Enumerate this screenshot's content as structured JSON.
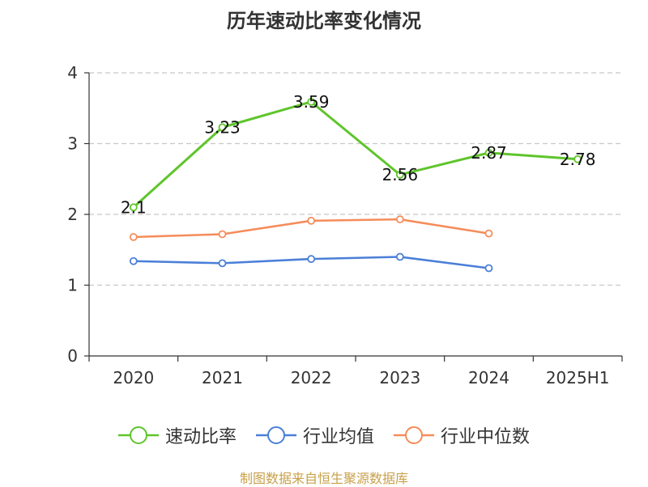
{
  "chart_data": {
    "type": "line",
    "title": "历年速动比率变化情况",
    "categories": [
      "2020",
      "2021",
      "2022",
      "2023",
      "2024",
      "2025H1"
    ],
    "ylim": [
      0,
      4
    ],
    "yticks": [
      0,
      1,
      2,
      3,
      4
    ],
    "grid": true,
    "legend_position": "bottom",
    "series": [
      {
        "name": "速动比率",
        "color": "#5ec52b",
        "values": [
          2.1,
          3.23,
          3.59,
          2.56,
          2.87,
          2.78
        ],
        "labels": [
          "2.1",
          "3.23",
          "3.59",
          "2.56",
          "2.87",
          "2.78"
        ]
      },
      {
        "name": "行业均值",
        "color": "#4b7fd8",
        "values": [
          1.34,
          1.31,
          1.37,
          1.4,
          1.24,
          null
        ]
      },
      {
        "name": "行业中位数",
        "color": "#f58c5a",
        "values": [
          1.68,
          1.72,
          1.91,
          1.93,
          1.73,
          null
        ]
      }
    ]
  },
  "source_note": {
    "text": "制图数据来自恒生聚源数据库",
    "color": "#c8a04a"
  }
}
